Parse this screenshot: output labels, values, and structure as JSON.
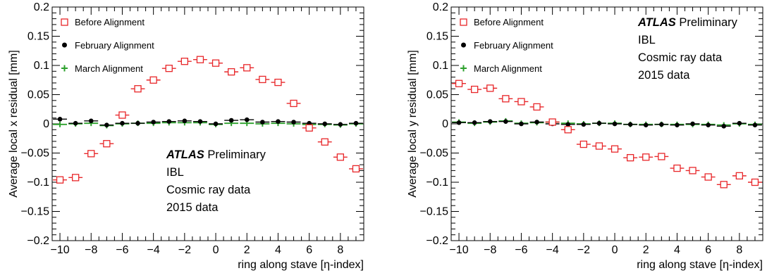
{
  "chart_data": [
    {
      "type": "scatter",
      "title": "",
      "xlabel": "ring along stave [η-index]",
      "ylabel": "Average local x residual [mm]",
      "xlim": [
        -10.5,
        9.5
      ],
      "ylim": [
        -0.2,
        0.2
      ],
      "xticks": [
        "−10",
        "−8",
        "−6",
        "−4",
        "−2",
        "0",
        "2",
        "4",
        "6",
        "8"
      ],
      "yticks": [
        "−0.2",
        "−0.15",
        "−0.1",
        "−0.05",
        "0",
        "0.05",
        "0.1",
        "0.15",
        "0.2"
      ],
      "grid": false,
      "legend_position": "top-left",
      "annotation": {
        "atlas": "ATLAS",
        "preliminary": "Preliminary",
        "lines": [
          "IBL",
          "Cosmic ray data",
          "2015 data"
        ],
        "position": "bottom-center"
      },
      "x": [
        -10,
        -9,
        -8,
        -7,
        -6,
        -5,
        -4,
        -3,
        -2,
        -1,
        0,
        1,
        2,
        3,
        4,
        5,
        6,
        7,
        8,
        9
      ],
      "series": [
        {
          "name": "Before Alignment",
          "marker": "open-square",
          "color": "#e8272a",
          "values": [
            -0.096,
            -0.092,
            -0.051,
            -0.034,
            0.015,
            0.06,
            0.075,
            0.095,
            0.107,
            0.11,
            0.104,
            0.089,
            0.096,
            0.076,
            0.071,
            0.035,
            -0.007,
            -0.031,
            -0.057,
            -0.077
          ],
          "errors": [
            0.004,
            0.004,
            0.004,
            0.004,
            0.003,
            0.003,
            0.003,
            0.003,
            0.003,
            0.003,
            0.003,
            0.003,
            0.003,
            0.003,
            0.003,
            0.003,
            0.004,
            0.004,
            0.004,
            0.004
          ]
        },
        {
          "name": "February Alignment",
          "marker": "filled-circle",
          "color": "#000000",
          "values": [
            0.008,
            0.001,
            0.005,
            -0.002,
            0.001,
            0.001,
            0.003,
            0.004,
            0.005,
            0.004,
            0.0,
            0.006,
            0.007,
            0.003,
            0.004,
            0.003,
            0.001,
            0.0,
            -0.001,
            0.001
          ]
        },
        {
          "name": "March Alignment",
          "marker": "plus",
          "color": "#2ca02c",
          "values": [
            -0.001,
            0.0,
            0.001,
            -0.003,
            0.0,
            0.001,
            0.001,
            0.002,
            0.002,
            0.002,
            -0.001,
            0.001,
            0.001,
            0.0,
            0.001,
            0.0,
            -0.001,
            -0.001,
            -0.002,
            0.0
          ]
        }
      ]
    },
    {
      "type": "scatter",
      "title": "",
      "xlabel": "ring along stave [η-index]",
      "ylabel": "Average local y residual [mm]",
      "xlim": [
        -10.5,
        9.5
      ],
      "ylim": [
        -0.2,
        0.2
      ],
      "xticks": [
        "−10",
        "−8",
        "−6",
        "−4",
        "−2",
        "0",
        "2",
        "4",
        "6",
        "8"
      ],
      "yticks": [
        "−0.2",
        "−0.15",
        "−0.1",
        "−0.05",
        "0",
        "0.05",
        "0.1",
        "0.15",
        "0.2"
      ],
      "grid": false,
      "legend_position": "top-left",
      "annotation": {
        "atlas": "ATLAS",
        "preliminary": "Preliminary",
        "lines": [
          "IBL",
          "Cosmic ray data",
          "2015 data"
        ],
        "position": "top-right"
      },
      "x": [
        -10,
        -9,
        -8,
        -7,
        -6,
        -5,
        -4,
        -3,
        -2,
        -1,
        0,
        1,
        2,
        3,
        4,
        5,
        6,
        7,
        8,
        9
      ],
      "series": [
        {
          "name": "Before Alignment",
          "marker": "open-square",
          "color": "#e8272a",
          "values": [
            0.069,
            0.059,
            0.061,
            0.043,
            0.038,
            0.029,
            0.003,
            -0.01,
            -0.035,
            -0.038,
            -0.043,
            -0.058,
            -0.057,
            -0.056,
            -0.076,
            -0.08,
            -0.091,
            -0.104,
            -0.089,
            -0.1
          ],
          "errors": [
            0.004,
            0.004,
            0.004,
            0.003,
            0.003,
            0.003,
            0.003,
            0.003,
            0.003,
            0.003,
            0.003,
            0.003,
            0.003,
            0.003,
            0.003,
            0.003,
            0.004,
            0.004,
            0.004,
            0.004
          ]
        },
        {
          "name": "February Alignment",
          "marker": "filled-circle",
          "color": "#000000",
          "values": [
            0.002,
            0.002,
            0.004,
            0.004,
            0.0,
            0.003,
            0.0,
            -0.001,
            -0.001,
            0.001,
            0.0,
            -0.001,
            -0.002,
            -0.001,
            -0.002,
            0.0,
            -0.002,
            -0.004,
            0.001,
            -0.002
          ]
        },
        {
          "name": "March Alignment",
          "marker": "plus",
          "color": "#2ca02c",
          "values": [
            0.003,
            0.001,
            0.003,
            0.005,
            0.001,
            0.002,
            0.003,
            0.001,
            0.0,
            0.001,
            0.001,
            -0.001,
            -0.001,
            -0.001,
            -0.001,
            -0.001,
            -0.001,
            -0.002,
            0.0,
            -0.001
          ]
        }
      ]
    }
  ]
}
